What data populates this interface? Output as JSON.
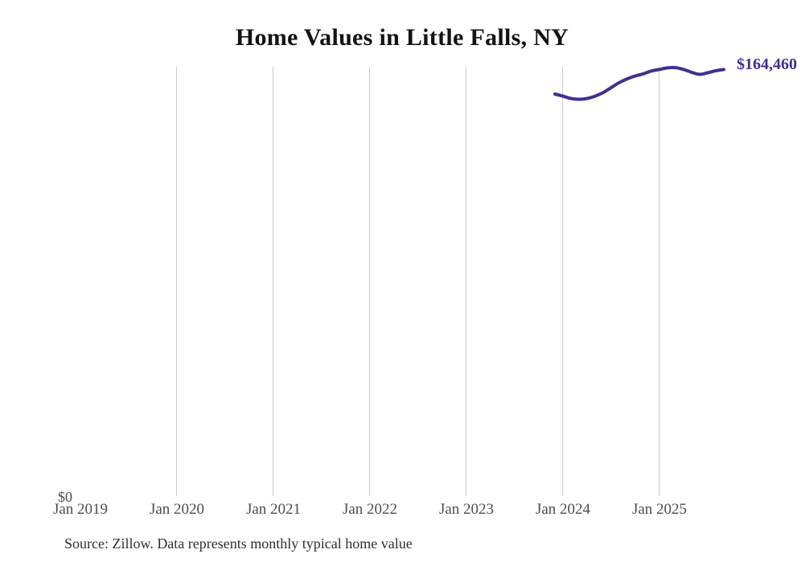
{
  "title": "Home Values in Little Falls, NY",
  "end_label": "$164,460",
  "source_note": "Source: Zillow. Data represents monthly typical home value",
  "colors": {
    "line": "#3b338c",
    "end_label": "#3b338c",
    "grid": "#cccccc",
    "tick_label": "#4d4d4d",
    "title": "#131313",
    "source": "#2f2f2f",
    "background": "#ffffff"
  },
  "chart_data": {
    "type": "line",
    "title": "Home Values in Little Falls, NY",
    "xlabel": "",
    "ylabel": "",
    "y_zero_label": "$0",
    "ylim": [
      0,
      165540
    ],
    "grid": "vertical-only",
    "legend": "none",
    "x_ticks": [
      {
        "label": "Jan 2019",
        "gridline": false
      },
      {
        "label": "Jan 2020",
        "gridline": true
      },
      {
        "label": "Jan 2021",
        "gridline": true
      },
      {
        "label": "Jan 2022",
        "gridline": true
      },
      {
        "label": "Jan 2023",
        "gridline": true
      },
      {
        "label": "Jan 2024",
        "gridline": true
      },
      {
        "label": "Jan 2025",
        "gridline": true
      }
    ],
    "series": [
      {
        "name": "Monthly typical home value",
        "color": "#3b338c",
        "points": [
          {
            "month": "Dec 2023",
            "value": 155000
          },
          {
            "month": "Jan 2024",
            "value": 154200
          },
          {
            "month": "Feb 2024",
            "value": 153300
          },
          {
            "month": "Mar 2024",
            "value": 153000
          },
          {
            "month": "Apr 2024",
            "value": 153300
          },
          {
            "month": "May 2024",
            "value": 154200
          },
          {
            "month": "Jun 2024",
            "value": 155600
          },
          {
            "month": "Jul 2024",
            "value": 157500
          },
          {
            "month": "Aug 2024",
            "value": 159400
          },
          {
            "month": "Sep 2024",
            "value": 160900
          },
          {
            "month": "Oct 2024",
            "value": 162000
          },
          {
            "month": "Nov 2024",
            "value": 162800
          },
          {
            "month": "Dec 2024",
            "value": 163900
          },
          {
            "month": "Jan 2025",
            "value": 164500
          },
          {
            "month": "Feb 2025",
            "value": 165100
          },
          {
            "month": "Mar 2025",
            "value": 165200
          },
          {
            "month": "Apr 2025",
            "value": 164500
          },
          {
            "month": "May 2025",
            "value": 163400
          },
          {
            "month": "Jun 2025",
            "value": 162600
          },
          {
            "month": "Jul 2025",
            "value": 163200
          },
          {
            "month": "Aug 2025",
            "value": 164000
          },
          {
            "month": "Sep 2025",
            "value": 164460
          }
        ]
      }
    ]
  }
}
